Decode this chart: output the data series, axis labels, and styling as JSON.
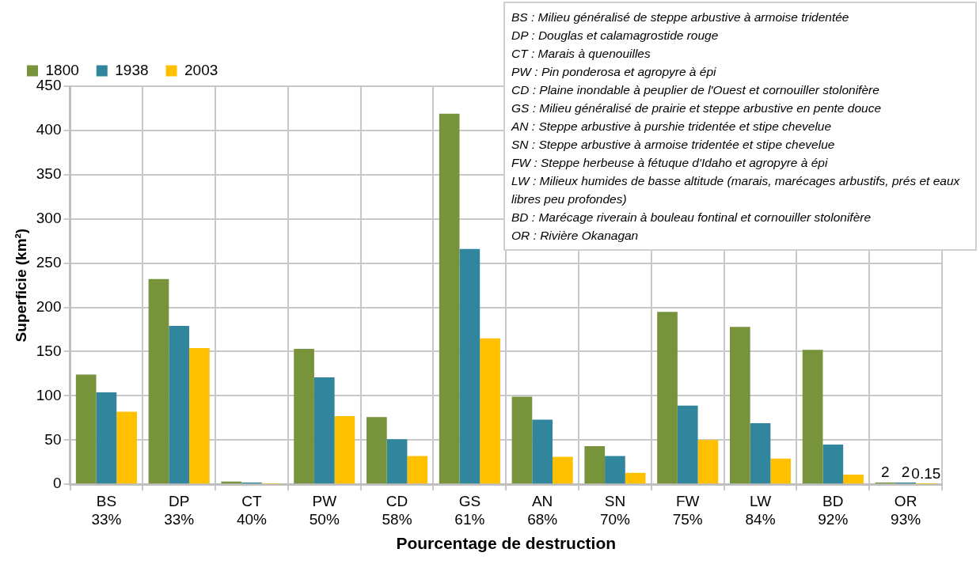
{
  "chart_data": {
    "type": "bar",
    "xlabel": "Pourcentage de destruction",
    "ylabel": "Superficie (km²)",
    "categories": [
      "BS\n33%",
      "DP\n33%",
      "CT\n40%",
      "PW\n50%",
      "CD\n58%",
      "GS\n61%",
      "AN\n68%",
      "SN\n70%",
      "FW\n75%",
      "LW\n84%",
      "BD\n92%",
      "OR\n93%"
    ],
    "series": [
      {
        "name": "1800",
        "color": "#77933c",
        "values": [
          124,
          232,
          3,
          153,
          76,
          419,
          99,
          43,
          195,
          178,
          152,
          2
        ],
        "value_labels": [
          null,
          null,
          null,
          null,
          null,
          null,
          null,
          null,
          null,
          null,
          null,
          "2"
        ]
      },
      {
        "name": "1938",
        "color": "#31859c",
        "values": [
          104,
          179,
          2,
          121,
          51,
          266,
          73,
          32,
          89,
          69,
          45,
          2
        ],
        "value_labels": [
          null,
          null,
          null,
          null,
          null,
          null,
          null,
          null,
          null,
          null,
          null,
          "2"
        ]
      },
      {
        "name": "2003",
        "color": "#ffc000",
        "values": [
          82,
          154,
          0.5,
          77,
          32,
          165,
          31,
          13,
          50,
          29,
          11,
          0.15
        ],
        "value_labels": [
          null,
          null,
          null,
          null,
          null,
          null,
          null,
          null,
          null,
          null,
          null,
          "0.15"
        ]
      }
    ],
    "ylim": [
      0,
      450
    ],
    "yticks": [
      0,
      50,
      100,
      150,
      200,
      250,
      300,
      350,
      400,
      450
    ],
    "grid": true,
    "legend": "top",
    "annotations": [
      "BS : Milieu généralisé de steppe arbustive à armoise tridentée",
      "DP : Douglas et calamagrostide rouge",
      "CT : Marais à quenouilles",
      "PW : Pin ponderosa et agropyre à épi",
      "CD : Plaine inondable à peuplier de l'Ouest et cornouiller stolonifère",
      "GS : Milieu généralisé de prairie et steppe arbustive en pente douce",
      "AN : Steppe arbustive à purshie tridentée et stipe chevelue",
      "SN : Steppe arbustive à armoise tridentée et stipe chevelue",
      "FW : Steppe herbeuse à fétuque d'Idaho et agropyre à épi",
      "LW : Milieux humides de basse altitude (marais, marécages arbustifs, prés et eaux libres peu profondes)",
      "BD : Marécage riverain à bouleau fontinal et cornouiller stolonifère",
      "OR : Rivière Okanagan"
    ]
  }
}
